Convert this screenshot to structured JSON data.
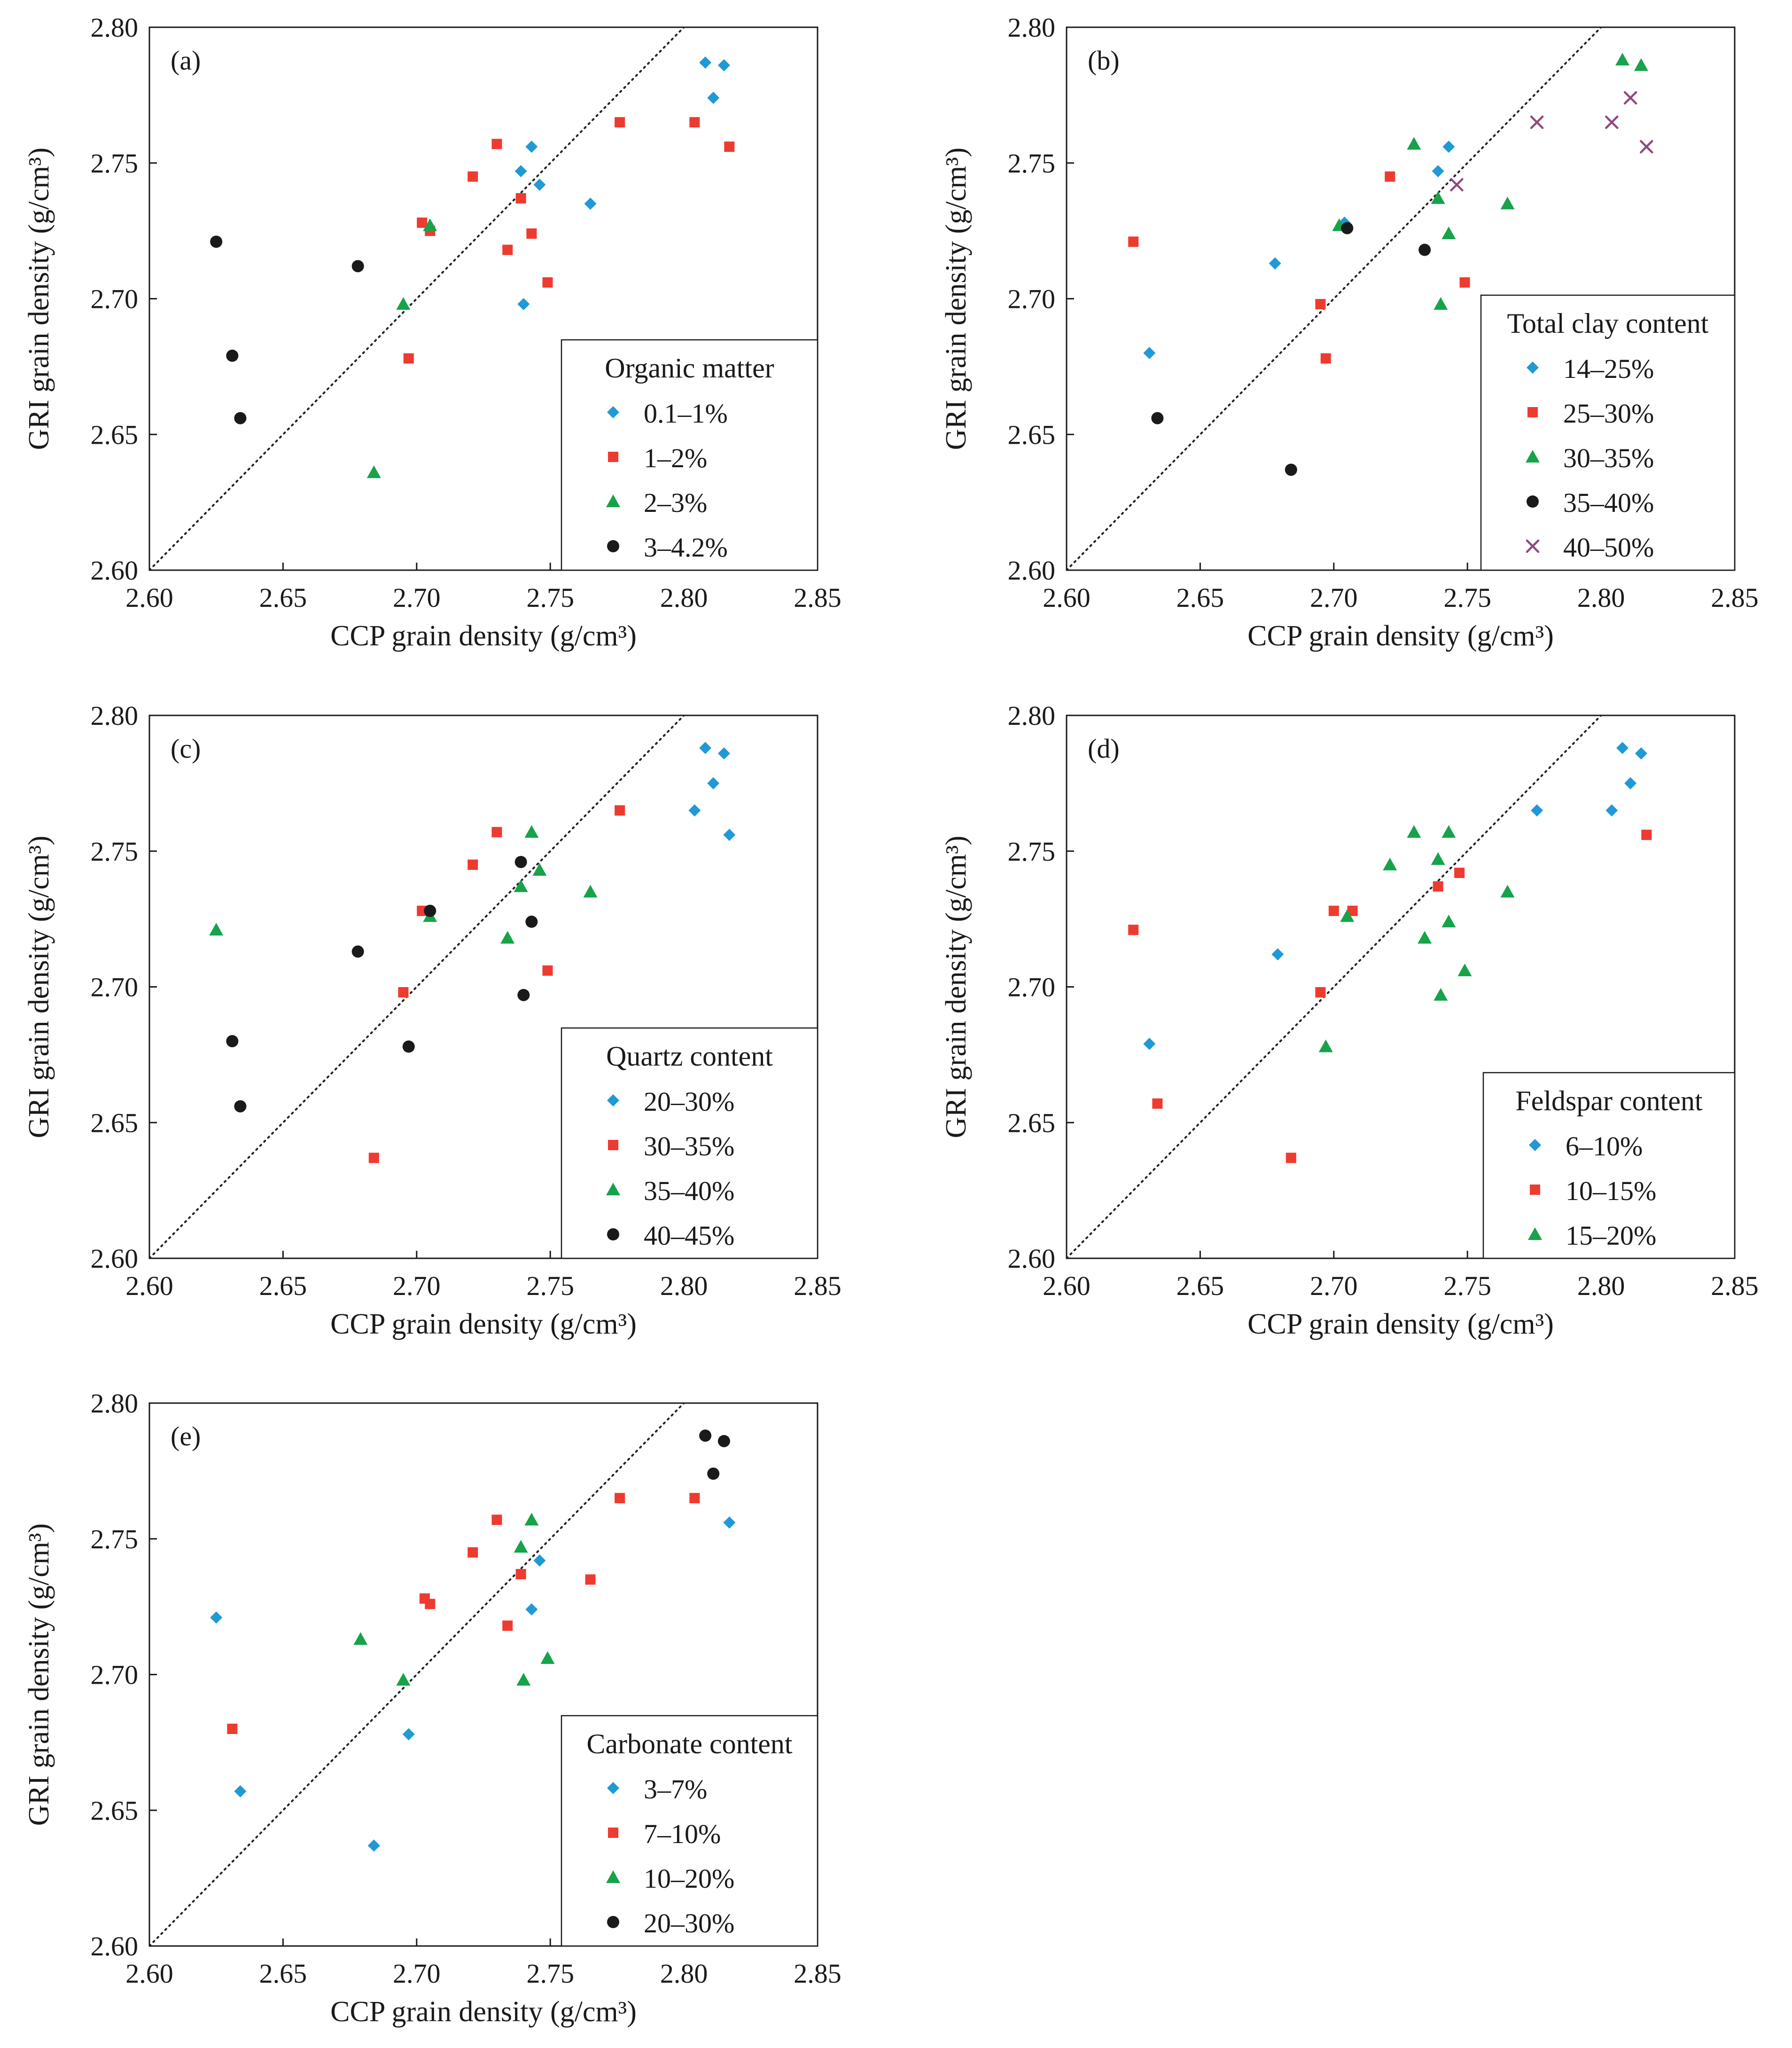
{
  "chart_data": [
    {
      "type": "scatter",
      "panel_label": "(a)",
      "xlabel": "CCP grain density (g/cm³)",
      "ylabel": "GRI grain density (g/cm³)",
      "xlim": [
        2.6,
        2.85
      ],
      "ylim": [
        2.6,
        2.8
      ],
      "x_ticks": [
        "2.60",
        "2.65",
        "2.70",
        "2.75",
        "2.80",
        "2.85"
      ],
      "y_ticks": [
        "2.60",
        "2.65",
        "2.70",
        "2.75",
        "2.80"
      ],
      "reference_line": "1:1 dotted",
      "legend_title": "Organic matter",
      "legend_position": "lower-right",
      "series": [
        {
          "name": "0.1–1%",
          "marker": "diamond",
          "color": "#1f9ad6",
          "points": [
            [
              2.808,
              2.787
            ],
            [
              2.815,
              2.786
            ],
            [
              2.811,
              2.774
            ],
            [
              2.743,
              2.756
            ],
            [
              2.739,
              2.747
            ],
            [
              2.746,
              2.742
            ],
            [
              2.765,
              2.735
            ],
            [
              2.74,
              2.698
            ]
          ]
        },
        {
          "name": "1–2%",
          "marker": "square",
          "color": "#ee3b30",
          "points": [
            [
              2.73,
              2.757
            ],
            [
              2.776,
              2.765
            ],
            [
              2.804,
              2.765
            ],
            [
              2.817,
              2.756
            ],
            [
              2.721,
              2.745
            ],
            [
              2.739,
              2.737
            ],
            [
              2.702,
              2.728
            ],
            [
              2.705,
              2.725
            ],
            [
              2.743,
              2.724
            ],
            [
              2.734,
              2.718
            ],
            [
              2.749,
              2.706
            ],
            [
              2.697,
              2.678
            ]
          ]
        },
        {
          "name": "2–3%",
          "marker": "triangle",
          "color": "#16a34a",
          "points": [
            [
              2.705,
              2.727
            ],
            [
              2.695,
              2.698
            ],
            [
              2.684,
              2.636
            ]
          ]
        },
        {
          "name": "3–4.2%",
          "marker": "circle",
          "color": "#1a1a1a",
          "points": [
            [
              2.625,
              2.721
            ],
            [
              2.678,
              2.712
            ],
            [
              2.631,
              2.679
            ],
            [
              2.634,
              2.656
            ]
          ]
        }
      ]
    },
    {
      "type": "scatter",
      "panel_label": "(b)",
      "xlabel": "CCP grain density (g/cm³)",
      "ylabel": "GRI grain density (g/cm³)",
      "xlim": [
        2.6,
        2.85
      ],
      "ylim": [
        2.6,
        2.8
      ],
      "x_ticks": [
        "2.60",
        "2.65",
        "2.70",
        "2.75",
        "2.80",
        "2.85"
      ],
      "y_ticks": [
        "2.60",
        "2.65",
        "2.70",
        "2.75",
        "2.80"
      ],
      "reference_line": "1:1 dotted",
      "legend_title": "Total clay content",
      "legend_position": "lower-right",
      "series": [
        {
          "name": "14–25%",
          "marker": "diamond",
          "color": "#1f9ad6",
          "points": [
            [
              2.743,
              2.756
            ],
            [
              2.739,
              2.747
            ],
            [
              2.704,
              2.728
            ],
            [
              2.678,
              2.713
            ],
            [
              2.631,
              2.68
            ]
          ]
        },
        {
          "name": "25–30%",
          "marker": "square",
          "color": "#ee3b30",
          "points": [
            [
              2.721,
              2.745
            ],
            [
              2.625,
              2.721
            ],
            [
              2.749,
              2.706
            ],
            [
              2.695,
              2.698
            ],
            [
              2.697,
              2.678
            ]
          ]
        },
        {
          "name": "30–35%",
          "marker": "triangle",
          "color": "#16a34a",
          "points": [
            [
              2.808,
              2.788
            ],
            [
              2.815,
              2.786
            ],
            [
              2.73,
              2.757
            ],
            [
              2.739,
              2.737
            ],
            [
              2.765,
              2.735
            ],
            [
              2.702,
              2.727
            ],
            [
              2.743,
              2.724
            ],
            [
              2.74,
              2.698
            ]
          ]
        },
        {
          "name": "35–40%",
          "marker": "circle",
          "color": "#1a1a1a",
          "points": [
            [
              2.705,
              2.726
            ],
            [
              2.734,
              2.718
            ],
            [
              2.634,
              2.656
            ],
            [
              2.684,
              2.637
            ]
          ]
        },
        {
          "name": "40–50%",
          "marker": "cross",
          "color": "#8e4a7c",
          "points": [
            [
              2.811,
              2.774
            ],
            [
              2.776,
              2.765
            ],
            [
              2.804,
              2.765
            ],
            [
              2.817,
              2.756
            ],
            [
              2.746,
              2.742
            ]
          ]
        }
      ]
    },
    {
      "type": "scatter",
      "panel_label": "(c)",
      "xlabel": "CCP grain density (g/cm³)",
      "ylabel": "GRI grain density (g/cm³)",
      "xlim": [
        2.6,
        2.85
      ],
      "ylim": [
        2.6,
        2.8
      ],
      "x_ticks": [
        "2.60",
        "2.65",
        "2.70",
        "2.75",
        "2.80",
        "2.85"
      ],
      "y_ticks": [
        "2.60",
        "2.65",
        "2.70",
        "2.75",
        "2.80"
      ],
      "reference_line": "1:1 dotted",
      "legend_title": "Quartz content",
      "legend_position": "lower-right",
      "series": [
        {
          "name": "20–30%",
          "marker": "diamond",
          "color": "#1f9ad6",
          "points": [
            [
              2.808,
              2.788
            ],
            [
              2.815,
              2.786
            ],
            [
              2.811,
              2.775
            ],
            [
              2.804,
              2.765
            ],
            [
              2.817,
              2.756
            ]
          ]
        },
        {
          "name": "30–35%",
          "marker": "square",
          "color": "#ee3b30",
          "points": [
            [
              2.73,
              2.757
            ],
            [
              2.776,
              2.765
            ],
            [
              2.721,
              2.745
            ],
            [
              2.702,
              2.728
            ],
            [
              2.749,
              2.706
            ],
            [
              2.695,
              2.698
            ],
            [
              2.684,
              2.637
            ]
          ]
        },
        {
          "name": "35–40%",
          "marker": "triangle",
          "color": "#16a34a",
          "points": [
            [
              2.625,
              2.721
            ],
            [
              2.743,
              2.757
            ],
            [
              2.746,
              2.743
            ],
            [
              2.739,
              2.737
            ],
            [
              2.765,
              2.735
            ],
            [
              2.705,
              2.726
            ],
            [
              2.734,
              2.718
            ]
          ]
        },
        {
          "name": "40–45%",
          "marker": "circle",
          "color": "#1a1a1a",
          "points": [
            [
              2.739,
              2.746
            ],
            [
              2.705,
              2.728
            ],
            [
              2.743,
              2.724
            ],
            [
              2.678,
              2.713
            ],
            [
              2.74,
              2.697
            ],
            [
              2.631,
              2.68
            ],
            [
              2.697,
              2.678
            ],
            [
              2.634,
              2.656
            ]
          ]
        }
      ]
    },
    {
      "type": "scatter",
      "panel_label": "(d)",
      "xlabel": "CCP grain density (g/cm³)",
      "ylabel": "GRI grain density (g/cm³)",
      "xlim": [
        2.6,
        2.85
      ],
      "ylim": [
        2.6,
        2.8
      ],
      "x_ticks": [
        "2.60",
        "2.65",
        "2.70",
        "2.75",
        "2.80",
        "2.85"
      ],
      "y_ticks": [
        "2.60",
        "2.65",
        "2.70",
        "2.75",
        "2.80"
      ],
      "reference_line": "1:1 dotted",
      "legend_title": "Feldspar content",
      "legend_position": "lower-right",
      "series": [
        {
          "name": "6–10%",
          "marker": "diamond",
          "color": "#1f9ad6",
          "points": [
            [
              2.808,
              2.788
            ],
            [
              2.815,
              2.786
            ],
            [
              2.811,
              2.775
            ],
            [
              2.776,
              2.765
            ],
            [
              2.804,
              2.765
            ],
            [
              2.679,
              2.712
            ],
            [
              2.631,
              2.679
            ]
          ]
        },
        {
          "name": "10–15%",
          "marker": "square",
          "color": "#ee3b30",
          "points": [
            [
              2.817,
              2.756
            ],
            [
              2.747,
              2.742
            ],
            [
              2.739,
              2.737
            ],
            [
              2.7,
              2.728
            ],
            [
              2.707,
              2.728
            ],
            [
              2.625,
              2.721
            ],
            [
              2.695,
              2.698
            ],
            [
              2.634,
              2.657
            ],
            [
              2.684,
              2.637
            ]
          ]
        },
        {
          "name": "15–20%",
          "marker": "triangle",
          "color": "#16a34a",
          "points": [
            [
              2.73,
              2.757
            ],
            [
              2.743,
              2.757
            ],
            [
              2.739,
              2.747
            ],
            [
              2.721,
              2.745
            ],
            [
              2.765,
              2.735
            ],
            [
              2.705,
              2.726
            ],
            [
              2.743,
              2.724
            ],
            [
              2.734,
              2.718
            ],
            [
              2.749,
              2.706
            ],
            [
              2.74,
              2.697
            ],
            [
              2.697,
              2.678
            ]
          ]
        }
      ]
    },
    {
      "type": "scatter",
      "panel_label": "(e)",
      "xlabel": "CCP grain density (g/cm³)",
      "ylabel": "GRI grain density (g/cm³)",
      "xlim": [
        2.6,
        2.85
      ],
      "ylim": [
        2.6,
        2.8
      ],
      "x_ticks": [
        "2.60",
        "2.65",
        "2.70",
        "2.75",
        "2.80",
        "2.85"
      ],
      "y_ticks": [
        "2.60",
        "2.65",
        "2.70",
        "2.75",
        "2.80"
      ],
      "reference_line": "1:1 dotted",
      "legend_title": "Carbonate content",
      "legend_position": "lower-right",
      "series": [
        {
          "name": "3–7%",
          "marker": "diamond",
          "color": "#1f9ad6",
          "points": [
            [
              2.817,
              2.756
            ],
            [
              2.746,
              2.742
            ],
            [
              2.743,
              2.724
            ],
            [
              2.625,
              2.721
            ],
            [
              2.697,
              2.678
            ],
            [
              2.634,
              2.657
            ],
            [
              2.684,
              2.637
            ]
          ]
        },
        {
          "name": "7–10%",
          "marker": "square",
          "color": "#ee3b30",
          "points": [
            [
              2.73,
              2.757
            ],
            [
              2.776,
              2.765
            ],
            [
              2.804,
              2.765
            ],
            [
              2.721,
              2.745
            ],
            [
              2.739,
              2.737
            ],
            [
              2.765,
              2.735
            ],
            [
              2.703,
              2.728
            ],
            [
              2.705,
              2.726
            ],
            [
              2.734,
              2.718
            ],
            [
              2.631,
              2.68
            ]
          ]
        },
        {
          "name": "10–20%",
          "marker": "triangle",
          "color": "#16a34a",
          "points": [
            [
              2.743,
              2.757
            ],
            [
              2.739,
              2.747
            ],
            [
              2.679,
              2.713
            ],
            [
              2.749,
              2.706
            ],
            [
              2.695,
              2.698
            ],
            [
              2.74,
              2.698
            ]
          ]
        },
        {
          "name": "20–30%",
          "marker": "circle",
          "color": "#1a1a1a",
          "points": [
            [
              2.808,
              2.788
            ],
            [
              2.815,
              2.786
            ],
            [
              2.811,
              2.774
            ]
          ]
        }
      ]
    }
  ]
}
